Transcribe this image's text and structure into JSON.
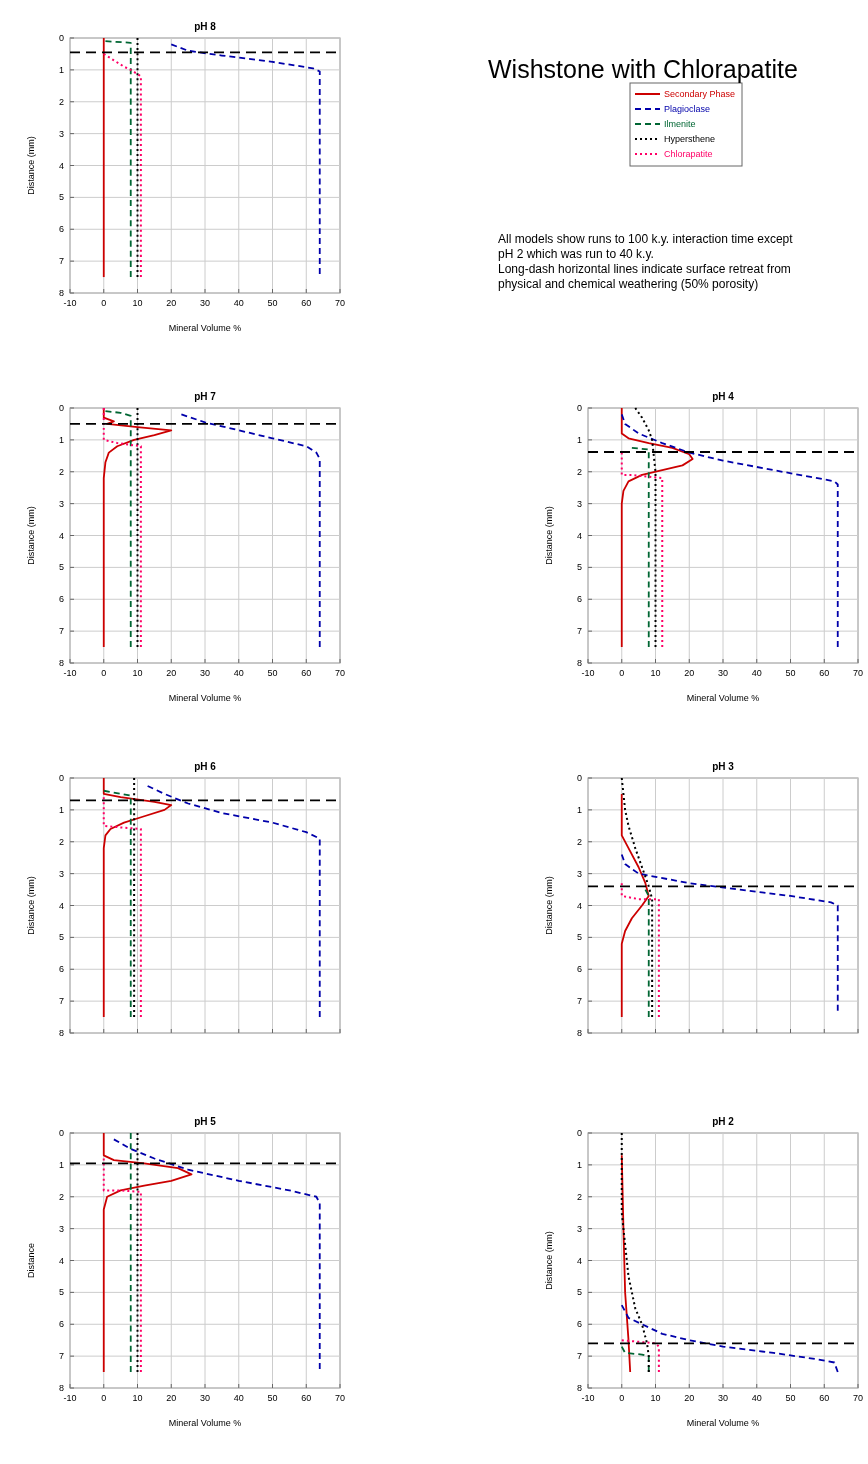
{
  "chart_data": [
    {
      "type": "line",
      "title": "pH 8",
      "xlabel": "Mineral Volume %",
      "ylabel": "Distance (mm)",
      "xlim": [
        -10,
        70
      ],
      "xticks": [
        -10,
        0,
        10,
        20,
        30,
        40,
        50,
        60,
        70
      ],
      "ylim": [
        8,
        0
      ],
      "yticks": [
        0,
        1,
        2,
        3,
        4,
        5,
        6,
        7,
        8
      ],
      "grid": true,
      "legend": "right",
      "ref_lines": [
        {
          "axis": "y",
          "value": 0.45,
          "color": "#000000",
          "line_style": "dashed"
        }
      ],
      "series": [
        {
          "name": "Secondary Phase",
          "color": "#cc0000",
          "line_style": "solid",
          "x": [
            0,
            0
          ],
          "values": [
            0,
            7.5
          ]
        },
        {
          "name": "Plagioclase",
          "color": "#0000aa",
          "line_style": "dashed",
          "x": [
            20,
            25,
            35,
            50,
            62,
            64,
            64
          ],
          "values": [
            0.2,
            0.4,
            0.55,
            0.75,
            0.95,
            1.05,
            7.4
          ]
        },
        {
          "name": "Ilmenite",
          "color": "#006633",
          "line_style": "dashed",
          "x": [
            0.5,
            8,
            8
          ],
          "values": [
            0.1,
            0.15,
            7.5
          ]
        },
        {
          "name": "Hypersthene",
          "color": "#000000",
          "line_style": "dotted",
          "x": [
            10,
            10
          ],
          "values": [
            0,
            7.5
          ]
        },
        {
          "name": "Chlorapatite",
          "color": "#ff0066",
          "line_style": "dotted",
          "x": [
            0,
            3,
            6,
            8,
            11,
            11
          ],
          "values": [
            0.5,
            0.7,
            0.9,
            1.0,
            1.2,
            7.5
          ]
        }
      ]
    },
    {
      "type": "other",
      "title": "Wishstone with Chlorapatite",
      "annotations": [
        "All models show runs to 100 k.y. interaction time except pH 2 which was run to 40 k.y.",
        "Long-dash horizontal lines indicate surface retreat from physical and chemical weathering (50% porosity)"
      ]
    },
    {
      "type": "line",
      "title": "pH 7",
      "xlabel": "Mineral Volume %",
      "ylabel": "Distance (mm)",
      "xlim": [
        -10,
        70
      ],
      "xticks": [
        -10,
        0,
        10,
        20,
        30,
        40,
        50,
        60,
        70
      ],
      "ylim": [
        8,
        0
      ],
      "yticks": [
        0,
        1,
        2,
        3,
        4,
        5,
        6,
        7,
        8
      ],
      "grid": true,
      "ref_lines": [
        {
          "axis": "y",
          "value": 0.5,
          "color": "#000000",
          "line_style": "dashed"
        }
      ],
      "series": [
        {
          "color": "#cc0000",
          "line_style": "solid",
          "x": [
            0,
            0,
            3,
            1,
            10,
            20,
            15,
            9,
            4,
            1.5,
            0.5,
            0,
            0
          ],
          "values": [
            0,
            0.3,
            0.42,
            0.5,
            0.6,
            0.7,
            0.85,
            1.0,
            1.2,
            1.4,
            1.7,
            2.2,
            7.5
          ]
        },
        {
          "color": "#0000aa",
          "line_style": "dashed",
          "x": [
            23,
            30,
            40,
            50,
            60,
            63,
            64,
            64
          ],
          "values": [
            0.2,
            0.45,
            0.7,
            0.95,
            1.2,
            1.4,
            1.6,
            7.5
          ]
        },
        {
          "color": "#006633",
          "line_style": "dashed",
          "x": [
            0.5,
            5,
            8,
            8
          ],
          "values": [
            0.1,
            0.15,
            0.25,
            7.5
          ]
        },
        {
          "color": "#000000",
          "line_style": "dotted",
          "x": [
            10,
            10
          ],
          "values": [
            0,
            7.5
          ]
        },
        {
          "color": "#ff0066",
          "line_style": "dotted",
          "x": [
            0,
            0,
            4,
            11,
            11
          ],
          "values": [
            0,
            1.0,
            1.1,
            1.2,
            7.5
          ]
        }
      ]
    },
    {
      "type": "line",
      "title": "pH 4",
      "xlabel": "Mineral Volume %",
      "ylabel": "Distance (mm)",
      "xlim": [
        -10,
        70
      ],
      "xticks": [
        -10,
        0,
        10,
        20,
        30,
        40,
        50,
        60,
        70
      ],
      "ylim": [
        8,
        0
      ],
      "yticks": [
        0,
        1,
        2,
        3,
        4,
        5,
        6,
        7,
        8
      ],
      "grid": true,
      "ref_lines": [
        {
          "axis": "y",
          "value": 1.38,
          "color": "#000000",
          "line_style": "dashed"
        }
      ],
      "series": [
        {
          "color": "#cc0000",
          "line_style": "solid",
          "x": [
            0,
            0,
            2,
            8,
            15,
            20,
            21,
            18,
            12,
            6,
            2,
            0.5,
            0,
            0
          ],
          "values": [
            0,
            0.8,
            0.95,
            1.1,
            1.25,
            1.45,
            1.6,
            1.8,
            1.95,
            2.1,
            2.3,
            2.6,
            3,
            7.5
          ]
        },
        {
          "color": "#0000aa",
          "line_style": "dashed",
          "x": [
            0,
            1,
            5,
            12,
            20,
            30,
            45,
            58,
            63,
            64,
            64
          ],
          "values": [
            0.2,
            0.5,
            0.8,
            1.1,
            1.4,
            1.65,
            1.95,
            2.2,
            2.3,
            2.4,
            7.5
          ]
        },
        {
          "color": "#006633",
          "line_style": "dashed",
          "x": [
            3,
            8,
            8
          ],
          "values": [
            1.25,
            1.3,
            7.5
          ]
        },
        {
          "color": "#000000",
          "line_style": "dotted",
          "x": [
            4,
            6,
            8,
            9,
            10,
            10
          ],
          "values": [
            0,
            0.3,
            0.7,
            1.0,
            2.0,
            7.5
          ]
        },
        {
          "color": "#ff0066",
          "line_style": "dotted",
          "x": [
            0,
            0,
            3,
            12,
            12
          ],
          "values": [
            1.4,
            2.1,
            2.1,
            2.2,
            7.5
          ]
        }
      ]
    },
    {
      "type": "line",
      "title": "pH 6",
      "ylabel": "Distance (mm)",
      "xlim": [
        -10,
        70
      ],
      "xticks": [
        -10,
        0,
        10,
        20,
        30,
        40,
        50,
        60,
        70
      ],
      "ylim": [
        8,
        0
      ],
      "yticks": [
        0,
        1,
        2,
        3,
        4,
        5,
        6,
        7,
        8
      ],
      "grid": true,
      "tick_labels": "y",
      "ref_lines": [
        {
          "axis": "y",
          "value": 0.7,
          "color": "#000000",
          "line_style": "dashed"
        }
      ],
      "series": [
        {
          "color": "#cc0000",
          "line_style": "solid",
          "x": [
            0,
            0,
            5,
            15,
            20,
            18,
            12,
            6,
            2,
            0.5,
            0,
            0
          ],
          "values": [
            0,
            0.5,
            0.6,
            0.75,
            0.85,
            1.0,
            1.2,
            1.4,
            1.6,
            1.8,
            2.2,
            7.5
          ]
        },
        {
          "color": "#0000aa",
          "line_style": "dashed",
          "x": [
            13,
            18,
            25,
            35,
            50,
            60,
            64,
            64
          ],
          "values": [
            0.25,
            0.5,
            0.8,
            1.1,
            1.4,
            1.7,
            1.9,
            7.5
          ]
        },
        {
          "color": "#006633",
          "line_style": "dashed",
          "x": [
            0,
            8,
            8
          ],
          "values": [
            0.4,
            0.55,
            7.5
          ]
        },
        {
          "color": "#000000",
          "line_style": "dotted",
          "x": [
            9,
            9
          ],
          "values": [
            0,
            7.5
          ]
        },
        {
          "color": "#ff0066",
          "line_style": "dotted",
          "x": [
            0,
            0,
            5,
            11,
            11
          ],
          "values": [
            0.6,
            1.5,
            1.55,
            1.6,
            7.5
          ]
        }
      ]
    },
    {
      "type": "line",
      "title": "pH 3",
      "ylabel": "Distance (mm)",
      "xlim": [
        -10,
        70
      ],
      "xticks": [
        -10,
        0,
        10,
        20,
        30,
        40,
        50,
        60,
        70
      ],
      "ylim": [
        8,
        0
      ],
      "yticks": [
        0,
        1,
        2,
        3,
        4,
        5,
        6,
        7,
        8
      ],
      "grid": true,
      "tick_labels": "y",
      "ref_lines": [
        {
          "axis": "y",
          "value": 3.4,
          "color": "#000000",
          "line_style": "dashed"
        }
      ],
      "series": [
        {
          "color": "#cc0000",
          "line_style": "solid",
          "x": [
            0,
            0,
            2,
            5,
            7,
            8,
            6,
            3,
            1,
            0,
            0
          ],
          "values": [
            0.5,
            1.8,
            2.2,
            2.8,
            3.3,
            3.7,
            4.0,
            4.4,
            4.8,
            5.2,
            7.5
          ]
        },
        {
          "color": "#0000aa",
          "line_style": "dashed",
          "x": [
            0,
            1,
            5,
            10,
            20,
            35,
            50,
            62,
            64,
            64
          ],
          "values": [
            2.4,
            2.7,
            3.0,
            3.1,
            3.3,
            3.5,
            3.7,
            3.9,
            4.0,
            7.3
          ]
        },
        {
          "color": "#006633",
          "line_style": "dashed",
          "x": [
            7,
            8,
            8
          ],
          "values": [
            3.5,
            3.7,
            7.5
          ]
        },
        {
          "color": "#000000",
          "line_style": "dotted",
          "x": [
            0,
            1,
            2,
            4,
            6,
            8,
            9,
            9
          ],
          "values": [
            0,
            1.0,
            1.5,
            2.2,
            2.8,
            3.4,
            3.8,
            7.5
          ]
        },
        {
          "color": "#ff0066",
          "line_style": "dotted",
          "x": [
            0,
            0,
            5,
            11,
            11
          ],
          "values": [
            3.3,
            3.7,
            3.8,
            3.8,
            7.5
          ]
        }
      ]
    },
    {
      "type": "line",
      "title": "pH 5",
      "xlabel": "Mineral Volume %",
      "ylabel": "Distance",
      "xlim": [
        -10,
        70
      ],
      "xticks": [
        -10,
        0,
        10,
        20,
        30,
        40,
        50,
        60,
        70
      ],
      "ylim": [
        8,
        0
      ],
      "yticks": [
        0,
        1,
        2,
        3,
        4,
        5,
        6,
        7,
        8
      ],
      "grid": true,
      "ref_lines": [
        {
          "axis": "y",
          "value": 0.95,
          "color": "#000000",
          "line_style": "dashed"
        }
      ],
      "series": [
        {
          "color": "#cc0000",
          "line_style": "solid",
          "x": [
            0,
            0,
            3,
            12,
            22,
            26,
            20,
            12,
            5,
            1,
            0,
            0
          ],
          "values": [
            0,
            0.7,
            0.85,
            0.95,
            1.1,
            1.3,
            1.5,
            1.65,
            1.8,
            2.0,
            2.4,
            7.5
          ]
        },
        {
          "color": "#0000aa",
          "line_style": "dashed",
          "x": [
            3,
            8,
            15,
            25,
            40,
            55,
            63,
            64,
            64
          ],
          "values": [
            0.2,
            0.5,
            0.8,
            1.15,
            1.5,
            1.8,
            2.0,
            2.2,
            7.4
          ]
        },
        {
          "color": "#006633",
          "line_style": "dashed",
          "x": [
            8,
            8
          ],
          "values": [
            0,
            7.5
          ]
        },
        {
          "color": "#000000",
          "line_style": "dotted",
          "x": [
            10,
            10
          ],
          "values": [
            0,
            7.5
          ]
        },
        {
          "color": "#ff0066",
          "line_style": "dotted",
          "x": [
            0,
            0,
            5,
            11,
            11
          ],
          "values": [
            0.8,
            1.8,
            1.8,
            1.85,
            7.5
          ]
        }
      ]
    },
    {
      "type": "line",
      "title": "pH 2",
      "xlabel": "Mineral Volume %",
      "ylabel": "Distance (mm)",
      "xlim": [
        -10,
        70
      ],
      "xticks": [
        -10,
        0,
        10,
        20,
        30,
        40,
        50,
        60,
        70
      ],
      "ylim": [
        8,
        0
      ],
      "yticks": [
        0,
        1,
        2,
        3,
        4,
        5,
        6,
        7,
        8
      ],
      "grid": true,
      "ref_lines": [
        {
          "axis": "y",
          "value": 6.6,
          "color": "#000000",
          "line_style": "dashed"
        }
      ],
      "series": [
        {
          "color": "#cc0000",
          "line_style": "solid",
          "x": [
            0,
            0.5,
            1,
            2,
            2.5
          ],
          "values": [
            0.7,
            3,
            5,
            6.5,
            7.5
          ]
        },
        {
          "color": "#0000aa",
          "line_style": "dashed",
          "x": [
            0,
            2,
            6,
            12,
            20,
            30,
            45,
            58,
            63,
            64
          ],
          "values": [
            5.4,
            5.8,
            6.0,
            6.3,
            6.5,
            6.7,
            6.9,
            7.1,
            7.2,
            7.5
          ]
        },
        {
          "color": "#006633",
          "line_style": "dashed",
          "x": [
            0,
            1,
            6,
            8,
            8
          ],
          "values": [
            6.7,
            6.9,
            6.95,
            7.0,
            7.5
          ]
        },
        {
          "color": "#000000",
          "line_style": "dotted",
          "x": [
            0,
            0,
            1,
            2,
            4,
            6,
            7.5,
            8,
            8
          ],
          "values": [
            0,
            2.5,
            3.5,
            4.5,
            5.5,
            6.0,
            6.6,
            7.0,
            7.5
          ]
        },
        {
          "color": "#ff0066",
          "line_style": "dotted",
          "x": [
            0,
            10,
            11,
            11
          ],
          "values": [
            6.5,
            6.6,
            6.7,
            7.5
          ]
        }
      ]
    }
  ]
}
